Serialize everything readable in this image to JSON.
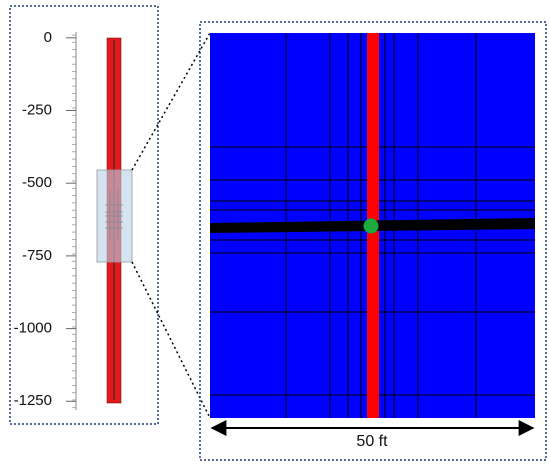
{
  "left_panel": {
    "ylim": [
      20,
      -1280
    ],
    "yticks": [
      0,
      -250,
      -500,
      -750,
      -1000,
      -1250
    ]
  },
  "right_panel": {
    "scale_label": "50 ft"
  }
}
